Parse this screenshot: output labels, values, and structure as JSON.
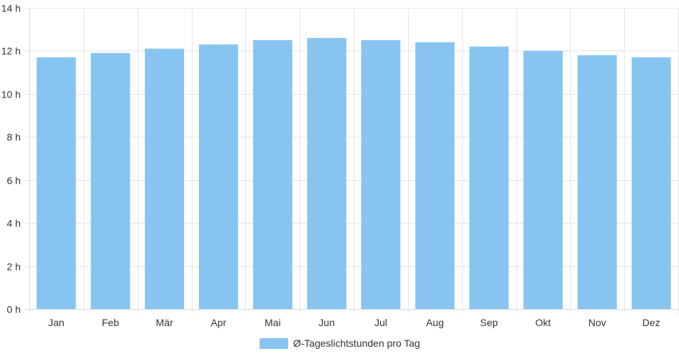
{
  "chart_data": {
    "type": "bar",
    "categories": [
      "Jan",
      "Feb",
      "Mär",
      "Apr",
      "Mai",
      "Jun",
      "Jul",
      "Aug",
      "Sep",
      "Okt",
      "Nov",
      "Dez"
    ],
    "series": [
      {
        "name": "Ø-Tageslichtstunden pro Tag",
        "values": [
          11.7,
          11.9,
          12.1,
          12.3,
          12.5,
          12.6,
          12.5,
          12.4,
          12.2,
          12.0,
          11.8,
          11.7
        ],
        "color": "#87c5f0"
      }
    ],
    "ylim": [
      0,
      14
    ],
    "yticks": [
      0,
      2,
      4,
      6,
      8,
      10,
      12,
      14
    ],
    "ytick_labels": [
      "0 h",
      "2 h",
      "4 h",
      "6 h",
      "8 h",
      "10 h",
      "12 h",
      "14 h"
    ],
    "grid": true,
    "legend_position": "bottom-center",
    "colors": {
      "grid": "#e6e6e6",
      "axis": "#d9d9d9",
      "text": "#333333"
    }
  }
}
